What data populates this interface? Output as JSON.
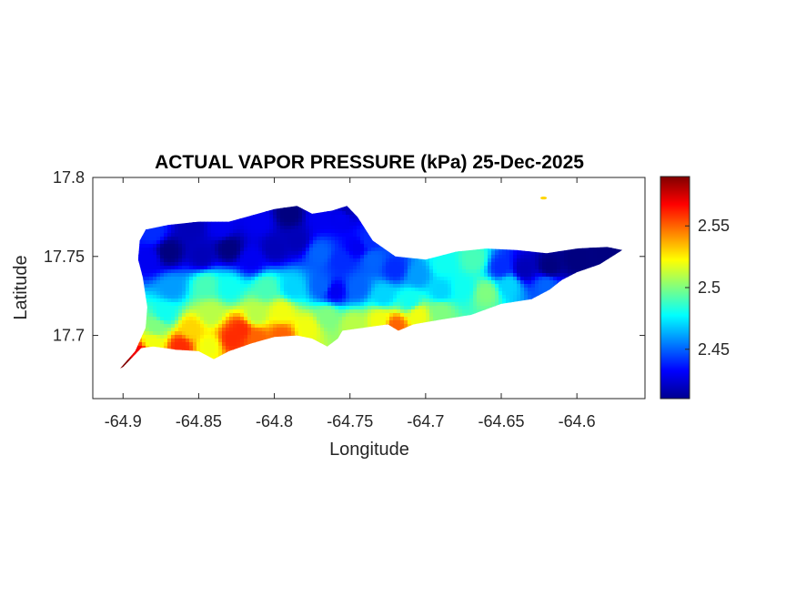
{
  "chart_data": {
    "type": "heatmap",
    "title": "ACTUAL VAPOR PRESSURE (kPa) 25-Dec-2025",
    "xlabel": "Longitude",
    "ylabel": "Latitude",
    "xlim": [
      -64.92,
      -64.555
    ],
    "ylim": [
      17.66,
      17.8
    ],
    "xticks": [
      -64.9,
      -64.85,
      -64.8,
      -64.75,
      -64.7,
      -64.65,
      -64.6
    ],
    "xtick_labels": [
      "-64.9",
      "-64.85",
      "-64.8",
      "-64.75",
      "-64.7",
      "-64.65",
      "-64.6"
    ],
    "yticks": [
      17.7,
      17.75,
      17.8
    ],
    "ytick_labels": [
      "17.7",
      "17.75",
      "17.8"
    ],
    "colorbar": {
      "range": [
        2.41,
        2.59
      ],
      "ticks": [
        2.45,
        2.5,
        2.55
      ],
      "tick_labels": [
        "2.45",
        "2.5",
        "2.55"
      ],
      "colormap": "jet"
    },
    "grid": false,
    "region_outline": [
      [
        -64.9,
        17.68
      ],
      [
        -64.895,
        17.685
      ],
      [
        -64.888,
        17.692
      ],
      [
        -64.88,
        17.693
      ],
      [
        -64.865,
        17.691
      ],
      [
        -64.85,
        17.69
      ],
      [
        -64.84,
        17.685
      ],
      [
        -64.83,
        17.69
      ],
      [
        -64.815,
        17.695
      ],
      [
        -64.8,
        17.699
      ],
      [
        -64.785,
        17.7
      ],
      [
        -64.775,
        17.698
      ],
      [
        -64.765,
        17.693
      ],
      [
        -64.758,
        17.698
      ],
      [
        -64.755,
        17.703
      ],
      [
        -64.74,
        17.705
      ],
      [
        -64.725,
        17.707
      ],
      [
        -64.718,
        17.703
      ],
      [
        -64.708,
        17.707
      ],
      [
        -64.69,
        17.71
      ],
      [
        -64.67,
        17.713
      ],
      [
        -64.65,
        17.72
      ],
      [
        -64.63,
        17.723
      ],
      [
        -64.618,
        17.729
      ],
      [
        -64.61,
        17.735
      ],
      [
        -64.6,
        17.74
      ],
      [
        -64.585,
        17.745
      ],
      [
        -64.57,
        17.754
      ],
      [
        -64.58,
        17.756
      ],
      [
        -64.6,
        17.755
      ],
      [
        -64.62,
        17.752
      ],
      [
        -64.64,
        17.754
      ],
      [
        -64.66,
        17.755
      ],
      [
        -64.68,
        17.753
      ],
      [
        -64.7,
        17.748
      ],
      [
        -64.72,
        17.75
      ],
      [
        -64.735,
        17.76
      ],
      [
        -64.745,
        17.775
      ],
      [
        -64.752,
        17.782
      ],
      [
        -64.762,
        17.779
      ],
      [
        -64.775,
        17.777
      ],
      [
        -64.785,
        17.782
      ],
      [
        -64.8,
        17.78
      ],
      [
        -64.815,
        17.776
      ],
      [
        -64.83,
        17.772
      ],
      [
        -64.85,
        17.772
      ],
      [
        -64.87,
        17.77
      ],
      [
        -64.885,
        17.767
      ],
      [
        -64.889,
        17.76
      ],
      [
        -64.89,
        17.748
      ],
      [
        -64.887,
        17.737
      ],
      [
        -64.884,
        17.718
      ],
      [
        -64.885,
        17.705
      ],
      [
        -64.892,
        17.69
      ],
      [
        -64.902,
        17.679
      ],
      [
        -64.9,
        17.68
      ]
    ],
    "islet": [
      -64.622,
      17.787
    ],
    "sample_points": [
      [
        -64.899,
        17.681,
        2.59
      ],
      [
        -64.89,
        17.688,
        2.57
      ],
      [
        -64.88,
        17.696,
        2.52
      ],
      [
        -64.862,
        17.693,
        2.56
      ],
      [
        -64.843,
        17.693,
        2.52
      ],
      [
        -64.828,
        17.698,
        2.56
      ],
      [
        -64.822,
        17.703,
        2.56
      ],
      [
        -64.812,
        17.698,
        2.55
      ],
      [
        -64.795,
        17.7,
        2.55
      ],
      [
        -64.878,
        17.705,
        2.5
      ],
      [
        -64.872,
        17.714,
        2.48
      ],
      [
        -64.855,
        17.704,
        2.53
      ],
      [
        -64.842,
        17.714,
        2.51
      ],
      [
        -64.812,
        17.713,
        2.51
      ],
      [
        -64.795,
        17.715,
        2.52
      ],
      [
        -64.778,
        17.705,
        2.52
      ],
      [
        -64.765,
        17.712,
        2.5
      ],
      [
        -64.748,
        17.707,
        2.51
      ],
      [
        -64.73,
        17.71,
        2.52
      ],
      [
        -64.72,
        17.706,
        2.55
      ],
      [
        -64.705,
        17.713,
        2.52
      ],
      [
        -64.69,
        17.715,
        2.5
      ],
      [
        -64.868,
        17.73,
        2.46
      ],
      [
        -64.845,
        17.732,
        2.49
      ],
      [
        -64.83,
        17.73,
        2.48
      ],
      [
        -64.805,
        17.73,
        2.49
      ],
      [
        -64.788,
        17.73,
        2.47
      ],
      [
        -64.768,
        17.731,
        2.45
      ],
      [
        -64.76,
        17.728,
        2.43
      ],
      [
        -64.745,
        17.73,
        2.45
      ],
      [
        -64.728,
        17.725,
        2.47
      ],
      [
        -64.71,
        17.722,
        2.48
      ],
      [
        -64.69,
        17.728,
        2.47
      ],
      [
        -64.675,
        17.73,
        2.48
      ],
      [
        -64.66,
        17.727,
        2.5
      ],
      [
        -64.645,
        17.732,
        2.47
      ],
      [
        -64.62,
        17.732,
        2.45
      ],
      [
        -64.883,
        17.748,
        2.43
      ],
      [
        -64.87,
        17.753,
        2.41
      ],
      [
        -64.848,
        17.75,
        2.42
      ],
      [
        -64.83,
        17.755,
        2.41
      ],
      [
        -64.815,
        17.748,
        2.43
      ],
      [
        -64.8,
        17.755,
        2.42
      ],
      [
        -64.785,
        17.76,
        2.42
      ],
      [
        -64.77,
        17.752,
        2.45
      ],
      [
        -64.756,
        17.747,
        2.44
      ],
      [
        -64.745,
        17.756,
        2.43
      ],
      [
        -64.735,
        17.748,
        2.45
      ],
      [
        -64.72,
        17.742,
        2.44
      ],
      [
        -64.705,
        17.738,
        2.46
      ],
      [
        -64.688,
        17.745,
        2.48
      ],
      [
        -64.668,
        17.748,
        2.49
      ],
      [
        -64.65,
        17.743,
        2.44
      ],
      [
        -64.635,
        17.742,
        2.42
      ],
      [
        -64.618,
        17.743,
        2.41
      ],
      [
        -64.6,
        17.748,
        2.41
      ],
      [
        -64.58,
        17.753,
        2.41
      ],
      [
        -64.88,
        17.765,
        2.44
      ],
      [
        -64.855,
        17.768,
        2.42
      ],
      [
        -64.835,
        17.768,
        2.43
      ],
      [
        -64.81,
        17.772,
        2.43
      ],
      [
        -64.79,
        17.777,
        2.41
      ],
      [
        -64.77,
        17.775,
        2.43
      ],
      [
        -64.755,
        17.775,
        2.43
      ],
      [
        -64.752,
        17.78,
        2.42
      ],
      [
        -64.738,
        17.76,
        2.44
      ],
      [
        -64.622,
        17.787,
        2.53
      ]
    ]
  }
}
